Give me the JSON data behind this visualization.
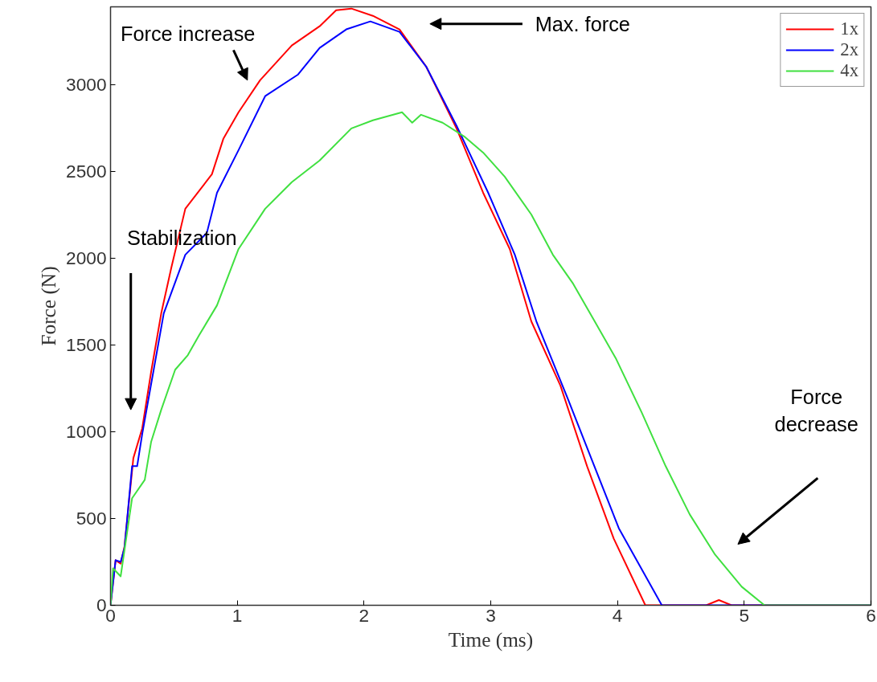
{
  "chart_data": {
    "type": "line",
    "xlabel": "Time (ms)",
    "ylabel": "Force (N)",
    "xlim": [
      0,
      6
    ],
    "xticks": [
      0,
      1,
      2,
      3,
      4,
      5,
      6
    ],
    "ylim": [
      0,
      3450
    ],
    "yticks": [
      0,
      500,
      1000,
      1500,
      2000,
      2500,
      3000
    ],
    "grid": false,
    "legend": "top right",
    "line_style": "solid",
    "marker": "none",
    "series": [
      {
        "name": "1x",
        "color": "#ff0000",
        "x": [
          0,
          0.04,
          0.08,
          0.11,
          0.18,
          0.25,
          0.32,
          0.4,
          0.48,
          0.59,
          0.8,
          0.89,
          1.01,
          1.18,
          1.43,
          1.65,
          1.78,
          1.9,
          2.07,
          2.28,
          2.49,
          2.73,
          2.94,
          3.15,
          3.32,
          3.55,
          3.76,
          3.97,
          4.22,
          4.7,
          4.8,
          4.9,
          6
        ],
        "values": [
          0,
          260,
          240,
          338,
          848,
          1020,
          1344,
          1683,
          1947,
          2286,
          2485,
          2689,
          2842,
          3027,
          3227,
          3338,
          3430,
          3440,
          3398,
          3320,
          3106,
          2749,
          2378,
          2054,
          1637,
          1266,
          802,
          385,
          0,
          0,
          30,
          0,
          0
        ]
      },
      {
        "name": "2x",
        "color": "#0000ff",
        "x": [
          0,
          0.04,
          0.08,
          0.11,
          0.17,
          0.21,
          0.25,
          0.42,
          0.59,
          0.76,
          0.84,
          1.01,
          1.22,
          1.48,
          1.65,
          1.86,
          2.05,
          2.28,
          2.49,
          2.73,
          2.98,
          3.19,
          3.36,
          3.61,
          3.8,
          4.01,
          4.35,
          6
        ],
        "values": [
          0,
          260,
          250,
          330,
          802,
          802,
          987,
          1683,
          2021,
          2147,
          2378,
          2624,
          2935,
          3060,
          3213,
          3320,
          3366,
          3306,
          3106,
          2765,
          2378,
          2021,
          1637,
          1187,
          834,
          445,
          0,
          0
        ]
      },
      {
        "name": "4x",
        "color": "#40e040",
        "x": [
          0,
          0.02,
          0.08,
          0.17,
          0.27,
          0.32,
          0.4,
          0.51,
          0.61,
          0.7,
          0.84,
          1.01,
          1.22,
          1.43,
          1.65,
          1.9,
          2.07,
          2.3,
          2.38,
          2.45,
          2.62,
          2.79,
          2.94,
          3.11,
          3.32,
          3.49,
          3.65,
          3.82,
          3.99,
          4.19,
          4.38,
          4.57,
          4.77,
          4.98,
          5.16,
          6
        ],
        "values": [
          0,
          213,
          167,
          617,
          723,
          941,
          1127,
          1358,
          1442,
          1558,
          1729,
          2054,
          2286,
          2439,
          2564,
          2749,
          2796,
          2842,
          2782,
          2828,
          2782,
          2703,
          2610,
          2471,
          2253,
          2021,
          1854,
          1637,
          1419,
          1113,
          802,
          524,
          292,
          107,
          0,
          0
        ]
      }
    ],
    "annotations": [
      "Force increase",
      "Max. force",
      "Stabilization",
      "Force decrease"
    ]
  }
}
